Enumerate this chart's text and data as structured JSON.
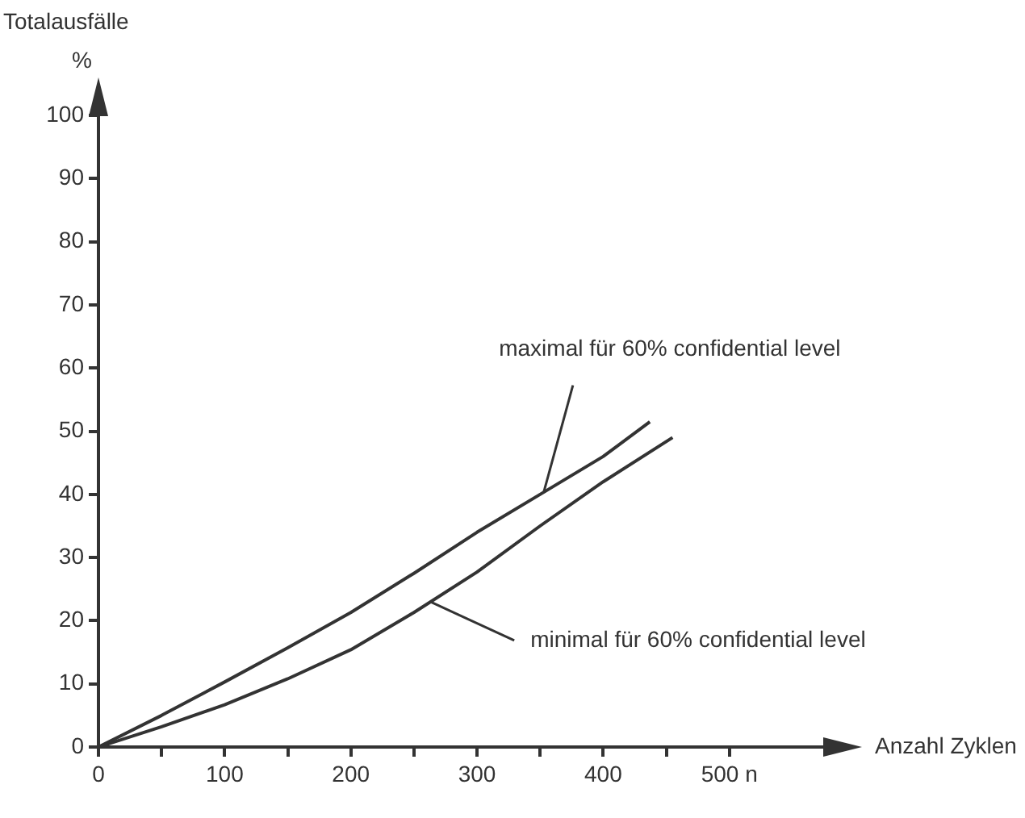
{
  "chart_data": {
    "type": "line",
    "ylabel": "Totalausfälle",
    "xlabel": "Anzahl Zyklen",
    "xlim": [
      0,
      600
    ],
    "ylim": [
      0,
      105
    ],
    "xticks": [
      0,
      {
        "value": 50,
        "label": null
      },
      100,
      {
        "value": 150,
        "label": null
      },
      200,
      {
        "value": 250,
        "label": null
      },
      300,
      {
        "value": 350,
        "label": null
      },
      400,
      {
        "value": 450,
        "label": null
      },
      {
        "value": 500,
        "label": "500 n"
      }
    ],
    "yticks": [
      0,
      10,
      20,
      30,
      40,
      50,
      60,
      70,
      80,
      90,
      100
    ],
    "series": [
      {
        "color": "#333333",
        "x": [
          0,
          50,
          100,
          150,
          200,
          250,
          300,
          350,
          400,
          437
        ],
        "values": [
          0,
          5,
          10.3,
          15.7,
          21.3,
          27.5,
          34,
          40,
          46,
          51.5
        ]
      },
      {
        "color": "#333333",
        "x": [
          0,
          50,
          100,
          150,
          200,
          250,
          300,
          350,
          400,
          455
        ],
        "values": [
          0,
          3.2,
          6.7,
          10.8,
          15.4,
          21.3,
          27.7,
          35,
          42,
          49
        ]
      }
    ],
    "annotations": [
      {
        "text": "maximal für 60% confidential level",
        "x": 353,
        "y": 40.4
      },
      {
        "text": "minimal für 60% confidential level",
        "x": 263,
        "y": 23
      },
      "%"
    ],
    "grid": false,
    "legend": false,
    "marker": "none",
    "line_style": "solid"
  }
}
